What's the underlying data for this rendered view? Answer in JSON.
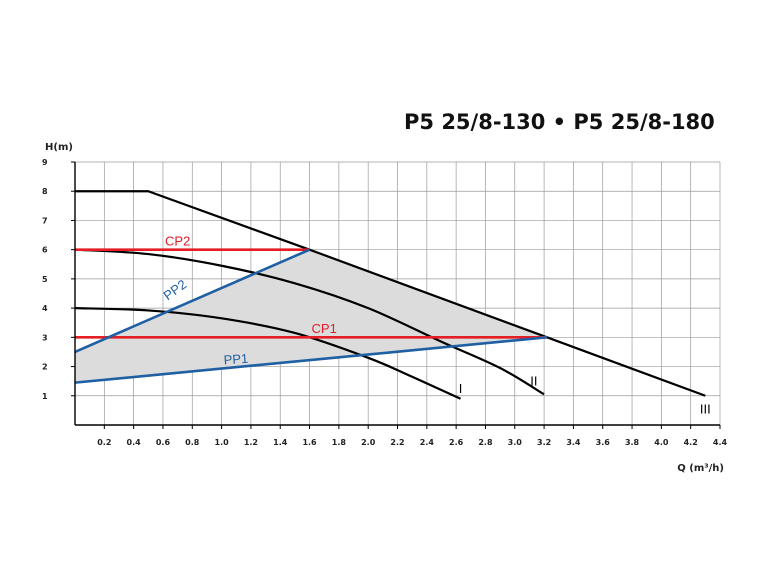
{
  "chart_data": {
    "type": "line",
    "title": "P5 25/8-130 • P5 25/8-180",
    "ylabel": "H(m)",
    "xlabel": "Q (m³/h)",
    "xlim": [
      0,
      4.4
    ],
    "ylim": [
      0,
      9
    ],
    "grid": true,
    "x_ticks": [
      "0.2",
      "0.4",
      "0.6",
      "0.8",
      "1.0",
      "1.2",
      "1.4",
      "1.6",
      "1.8",
      "2.0",
      "2.2",
      "2.4",
      "2.6",
      "2.8",
      "3.0",
      "3.2",
      "3.4",
      "3.6",
      "3.8",
      "4.0",
      "4.2",
      "4.4"
    ],
    "y_ticks": [
      "1",
      "2",
      "3",
      "4",
      "5",
      "6",
      "7",
      "8",
      "9"
    ],
    "series": [
      {
        "name": "I",
        "color": "#000000",
        "smooth": true,
        "points": [
          [
            0,
            4.0
          ],
          [
            0.5,
            3.92
          ],
          [
            1.0,
            3.65
          ],
          [
            1.5,
            3.15
          ],
          [
            2.0,
            2.3
          ],
          [
            2.3,
            1.65
          ],
          [
            2.63,
            0.9
          ]
        ]
      },
      {
        "name": "II",
        "color": "#000000",
        "smooth": true,
        "points": [
          [
            0,
            6.0
          ],
          [
            0.5,
            5.85
          ],
          [
            1.0,
            5.45
          ],
          [
            1.5,
            4.85
          ],
          [
            2.0,
            4.0
          ],
          [
            2.5,
            2.85
          ],
          [
            2.9,
            1.95
          ],
          [
            3.2,
            1.05
          ]
        ]
      },
      {
        "name": "III",
        "color": "#000000",
        "smooth": false,
        "points": [
          [
            0,
            8.0
          ],
          [
            0.5,
            8.0
          ],
          [
            1.6,
            6.0
          ],
          [
            3.22,
            3.0
          ],
          [
            4.3,
            1.0
          ]
        ]
      },
      {
        "name": "CP1",
        "color": "#e31e24",
        "smooth": false,
        "points": [
          [
            0,
            3.0
          ],
          [
            3.22,
            3.0
          ]
        ]
      },
      {
        "name": "CP2",
        "color": "#e31e24",
        "smooth": false,
        "points": [
          [
            0,
            6.0
          ],
          [
            1.6,
            6.0
          ]
        ]
      },
      {
        "name": "PP1",
        "color": "#1f5fa3",
        "smooth": false,
        "points": [
          [
            0,
            1.45
          ],
          [
            3.22,
            3.0
          ]
        ]
      },
      {
        "name": "PP2",
        "color": "#1f5fa3",
        "smooth": false,
        "points": [
          [
            0,
            2.5
          ],
          [
            1.6,
            6.0
          ]
        ]
      }
    ],
    "shaded_region": {
      "color": "#dcdcdc",
      "points": [
        [
          0,
          1.45
        ],
        [
          0,
          2.5
        ],
        [
          1.6,
          6.0
        ],
        [
          3.22,
          3.0
        ]
      ]
    },
    "annotations": [
      {
        "text": "CP2",
        "x": 0.7,
        "y": 6.15,
        "color": "#e31e24"
      },
      {
        "text": "CP1",
        "x": 1.7,
        "y": 3.15,
        "color": "#e31e24"
      },
      {
        "text": "PP2",
        "x": 0.7,
        "y": 4.5,
        "color": "#1f5fa3",
        "rotate": -36
      },
      {
        "text": "PP1",
        "x": 1.1,
        "y": 2.1,
        "color": "#1f5fa3",
        "rotate": -4
      },
      {
        "text": "I",
        "x": 2.63,
        "y": 1.1,
        "color": "#000000"
      },
      {
        "text": "II",
        "x": 3.13,
        "y": 1.35,
        "color": "#000000"
      },
      {
        "text": "III",
        "x": 4.3,
        "y": 0.4,
        "color": "#000000"
      }
    ]
  }
}
